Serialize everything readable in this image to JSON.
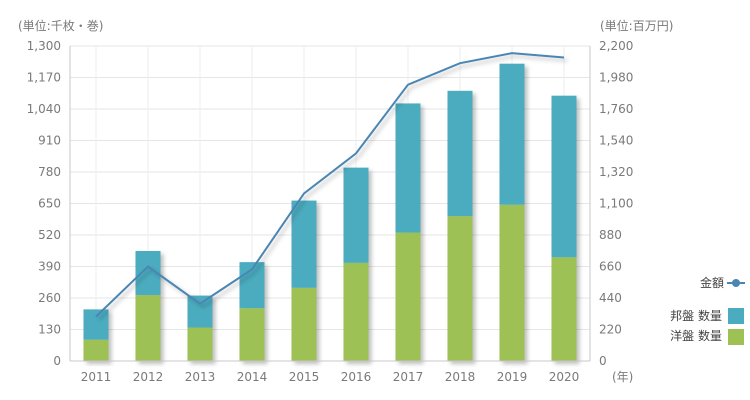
{
  "chart_data": {
    "type": "bar",
    "stacked": true,
    "categories": [
      "2011",
      "2012",
      "2013",
      "2014",
      "2015",
      "2016",
      "2017",
      "2018",
      "2019",
      "2020"
    ],
    "series": [
      {
        "name": "洋盤 数量",
        "axis": "left",
        "type": "bar",
        "color": "#9dc155",
        "values": [
          88,
          272,
          138,
          218,
          302,
          405,
          530,
          598,
          645,
          428
        ]
      },
      {
        "name": "邦盤 数量",
        "axis": "left",
        "type": "bar",
        "color": "#4bacc0",
        "values": [
          125,
          182,
          132,
          190,
          360,
          393,
          533,
          517,
          582,
          667
        ]
      },
      {
        "name": "金額",
        "axis": "right",
        "type": "line",
        "color": "#4a86b4",
        "values": [
          310,
          660,
          400,
          640,
          1170,
          1450,
          1930,
          2080,
          2150,
          2120
        ]
      }
    ],
    "left_axis": {
      "label": "(単位:千枚・巻)",
      "min": 0,
      "max": 1300,
      "ticks": [
        "0",
        "130",
        "260",
        "390",
        "520",
        "650",
        "780",
        "910",
        "1,040",
        "1,170",
        "1,300"
      ]
    },
    "right_axis": {
      "label": "(単位:百万円)",
      "min": 0,
      "max": 2200,
      "ticks": [
        "0",
        "220",
        "440",
        "660",
        "880",
        "1,100",
        "1,320",
        "1,540",
        "1,760",
        "1,980",
        "2,200"
      ]
    },
    "x_unit": "(年)",
    "legend": [
      "金額",
      "邦盤 数量",
      "洋盤 数量"
    ],
    "grid": true
  }
}
